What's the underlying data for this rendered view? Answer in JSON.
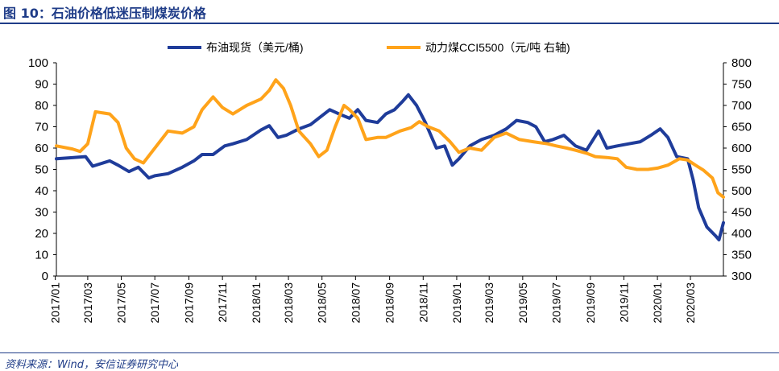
{
  "figure": {
    "title": "图 10：石油价格低迷压制煤炭价格",
    "source": "资料来源：Wind，安信证券研究中心"
  },
  "colors": {
    "oil": "#1f3c9a",
    "coal": "#ffa31a",
    "accent": "#1f3c88"
  },
  "chart_data": {
    "type": "line",
    "title": "",
    "legend_position": "top",
    "grid": false,
    "x_ticks": [
      "2017/01",
      "2017/03",
      "2017/05",
      "2017/07",
      "2017/09",
      "2017/11",
      "2018/01",
      "2018/03",
      "2018/05",
      "2018/07",
      "2018/09",
      "2018/11",
      "2019/01",
      "2019/03",
      "2019/05",
      "2019/07",
      "2019/09",
      "2019/11",
      "2020/01",
      "2020/03"
    ],
    "x_range": [
      "2017/01/03",
      "2020/04/30"
    ],
    "y_left": {
      "range": [
        0,
        100
      ],
      "ticks": [
        "0",
        "10",
        "20",
        "30",
        "40",
        "50",
        "60",
        "70",
        "80",
        "90",
        "100"
      ]
    },
    "y_right": {
      "range": [
        300,
        800
      ],
      "ticks": [
        "300",
        "350",
        "400",
        "450",
        "500",
        "550",
        "600",
        "650",
        "700",
        "750",
        "800"
      ]
    },
    "series": [
      {
        "name": "布油现货（美元/桶)",
        "axis": "left",
        "points": [
          [
            "2017/01/03",
            55
          ],
          [
            "2017/02/01",
            55.5
          ],
          [
            "2017/02/25",
            56
          ],
          [
            "2017/03/10",
            51.5
          ],
          [
            "2017/04/10",
            54
          ],
          [
            "2017/04/25",
            52
          ],
          [
            "2017/05/15",
            49
          ],
          [
            "2017/06/01",
            51
          ],
          [
            "2017/06/20",
            46
          ],
          [
            "2017/07/01",
            47
          ],
          [
            "2017/07/25",
            48
          ],
          [
            "2017/08/20",
            51
          ],
          [
            "2017/09/10",
            54
          ],
          [
            "2017/09/25",
            57
          ],
          [
            "2017/10/15",
            57
          ],
          [
            "2017/11/05",
            61
          ],
          [
            "2017/11/20",
            62
          ],
          [
            "2017/12/15",
            64
          ],
          [
            "2018/01/10",
            68.5
          ],
          [
            "2018/01/25",
            70.5
          ],
          [
            "2018/02/10",
            65
          ],
          [
            "2018/02/25",
            66
          ],
          [
            "2018/03/20",
            69
          ],
          [
            "2018/04/10",
            71
          ],
          [
            "2018/04/25",
            74
          ],
          [
            "2018/05/15",
            78
          ],
          [
            "2018/06/01",
            76
          ],
          [
            "2018/06/20",
            74
          ],
          [
            "2018/07/05",
            78
          ],
          [
            "2018/07/20",
            73
          ],
          [
            "2018/08/10",
            72
          ],
          [
            "2018/08/25",
            76
          ],
          [
            "2018/09/10",
            78
          ],
          [
            "2018/09/25",
            82
          ],
          [
            "2018/10/05",
            85
          ],
          [
            "2018/10/20",
            80
          ],
          [
            "2018/11/05",
            72
          ],
          [
            "2018/11/25",
            60
          ],
          [
            "2018/12/10",
            61
          ],
          [
            "2018/12/24",
            52
          ],
          [
            "2019/01/05",
            55
          ],
          [
            "2019/01/25",
            61
          ],
          [
            "2019/02/15",
            64
          ],
          [
            "2019/03/10",
            66
          ],
          [
            "2019/04/01",
            69
          ],
          [
            "2019/04/20",
            73
          ],
          [
            "2019/05/10",
            72
          ],
          [
            "2019/05/25",
            70
          ],
          [
            "2019/06/10",
            63
          ],
          [
            "2019/06/25",
            64
          ],
          [
            "2019/07/15",
            66
          ],
          [
            "2019/08/05",
            61
          ],
          [
            "2019/08/25",
            59
          ],
          [
            "2019/09/16",
            68
          ],
          [
            "2019/10/01",
            60
          ],
          [
            "2019/10/20",
            61
          ],
          [
            "2019/11/10",
            62
          ],
          [
            "2019/12/01",
            63
          ],
          [
            "2019/12/20",
            66
          ],
          [
            "2020/01/06",
            69
          ],
          [
            "2020/01/20",
            65
          ],
          [
            "2020/02/05",
            56
          ],
          [
            "2020/02/25",
            55
          ],
          [
            "2020/03/06",
            45
          ],
          [
            "2020/03/16",
            32
          ],
          [
            "2020/03/31",
            23
          ],
          [
            "2020/04/15",
            19
          ],
          [
            "2020/04/22",
            17
          ],
          [
            "2020/04/30",
            25
          ]
        ]
      },
      {
        "name": "动力煤CCI5500（元/吨 右轴)",
        "axis": "right",
        "points": [
          [
            "2017/01/03",
            605
          ],
          [
            "2017/02/01",
            598
          ],
          [
            "2017/02/15",
            592
          ],
          [
            "2017/03/01",
            610
          ],
          [
            "2017/03/15",
            685
          ],
          [
            "2017/04/10",
            680
          ],
          [
            "2017/04/25",
            660
          ],
          [
            "2017/05/10",
            600
          ],
          [
            "2017/05/25",
            575
          ],
          [
            "2017/06/10",
            565
          ],
          [
            "2017/06/25",
            590
          ],
          [
            "2017/07/10",
            615
          ],
          [
            "2017/07/25",
            640
          ],
          [
            "2017/08/20",
            635
          ],
          [
            "2017/09/10",
            650
          ],
          [
            "2017/09/25",
            690
          ],
          [
            "2017/10/15",
            720
          ],
          [
            "2017/11/01",
            695
          ],
          [
            "2017/11/20",
            680
          ],
          [
            "2017/12/15",
            700
          ],
          [
            "2018/01/10",
            715
          ],
          [
            "2018/01/25",
            735
          ],
          [
            "2018/02/06",
            760
          ],
          [
            "2018/02/20",
            740
          ],
          [
            "2018/03/05",
            700
          ],
          [
            "2018/03/20",
            640
          ],
          [
            "2018/04/10",
            610
          ],
          [
            "2018/04/25",
            580
          ],
          [
            "2018/05/10",
            595
          ],
          [
            "2018/05/25",
            650
          ],
          [
            "2018/06/10",
            700
          ],
          [
            "2018/06/20",
            690
          ],
          [
            "2018/07/05",
            670
          ],
          [
            "2018/07/20",
            620
          ],
          [
            "2018/08/10",
            625
          ],
          [
            "2018/08/25",
            625
          ],
          [
            "2018/09/20",
            640
          ],
          [
            "2018/10/10",
            648
          ],
          [
            "2018/10/25",
            662
          ],
          [
            "2018/11/10",
            650
          ],
          [
            "2018/11/30",
            640
          ],
          [
            "2018/12/20",
            615
          ],
          [
            "2019/01/05",
            590
          ],
          [
            "2019/01/25",
            600
          ],
          [
            "2019/02/15",
            595
          ],
          [
            "2019/03/10",
            625
          ],
          [
            "2019/04/01",
            635
          ],
          [
            "2019/04/25",
            620
          ],
          [
            "2019/05/20",
            615
          ],
          [
            "2019/06/15",
            610
          ],
          [
            "2019/07/01",
            605
          ],
          [
            "2019/07/20",
            600
          ],
          [
            "2019/08/05",
            595
          ],
          [
            "2019/08/25",
            588
          ],
          [
            "2019/09/10",
            580
          ],
          [
            "2019/10/01",
            578
          ],
          [
            "2019/10/20",
            575
          ],
          [
            "2019/11/05",
            555
          ],
          [
            "2019/11/25",
            550
          ],
          [
            "2019/12/15",
            550
          ],
          [
            "2020/01/01",
            553
          ],
          [
            "2020/01/20",
            560
          ],
          [
            "2020/02/10",
            575
          ],
          [
            "2020/02/25",
            572
          ],
          [
            "2020/03/10",
            560
          ],
          [
            "2020/03/25",
            548
          ],
          [
            "2020/04/10",
            530
          ],
          [
            "2020/04/20",
            495
          ],
          [
            "2020/04/30",
            485
          ]
        ]
      }
    ]
  }
}
